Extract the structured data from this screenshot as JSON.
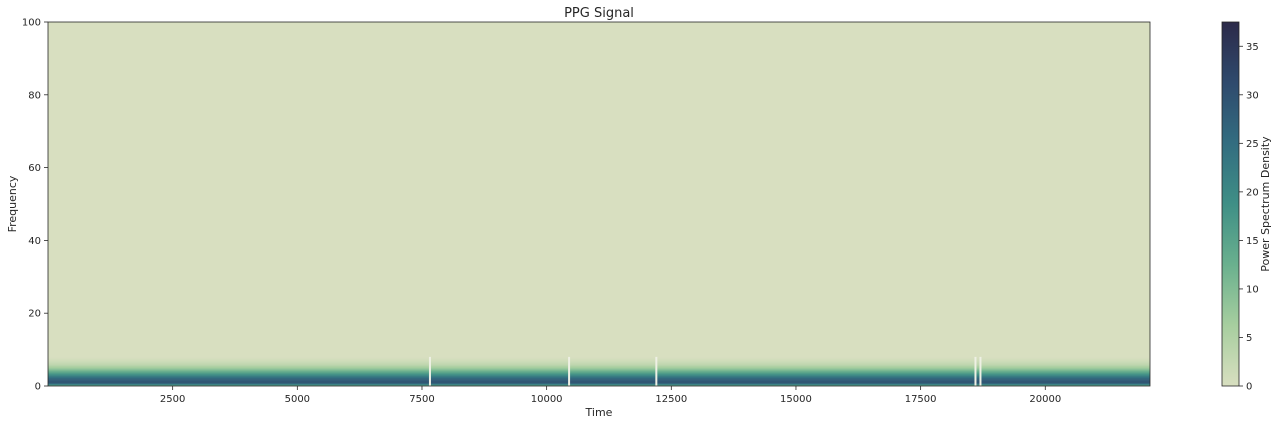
{
  "chart_data": {
    "type": "heatmap",
    "title": "PPG Signal",
    "xlabel": "Time",
    "ylabel": "Frequency",
    "xlim": [
      0,
      22100
    ],
    "ylim": [
      0,
      100
    ],
    "xticks": [
      2500,
      5000,
      7500,
      10000,
      12500,
      15000,
      17500,
      20000
    ],
    "yticks": [
      0,
      20,
      40,
      60,
      80,
      100
    ],
    "grid": false,
    "colorbar": {
      "label": "Power Spectrum Density",
      "range": [
        0,
        37.5
      ],
      "ticks": [
        0,
        5,
        10,
        15,
        20,
        25,
        30,
        35
      ],
      "colors": [
        "#d8dfc0",
        "#a7ce9f",
        "#6ab08e",
        "#3f8f86",
        "#336d80",
        "#2f4a6d",
        "#2c2a49"
      ]
    },
    "frequency_profile": {
      "frequency": [
        0,
        0.5,
        1,
        2,
        3,
        4,
        5,
        6,
        7,
        8,
        100
      ],
      "psd": [
        8,
        22,
        30,
        27,
        20,
        13,
        7,
        3,
        1,
        0,
        0
      ]
    },
    "dropouts_time": [
      7660,
      10450,
      12200,
      18600,
      18700
    ]
  }
}
